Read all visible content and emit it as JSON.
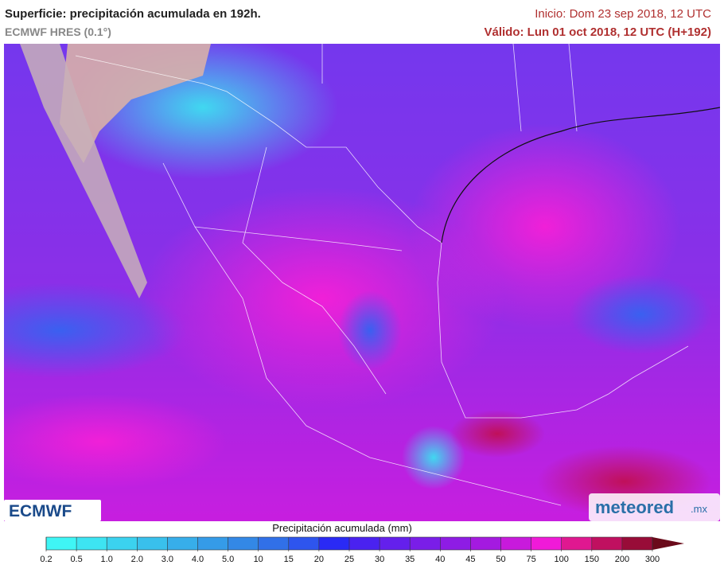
{
  "header": {
    "title": "Superficie: precipitación acumulada en 192h.",
    "model": "ECMWF HRES (0.1°)",
    "init": "Inicio: Dom 23 sep 2018, 12 UTC",
    "valid": "Válido: Lun 01 oct 2018, 12 UTC (H+192)"
  },
  "logos": {
    "left": "ECMWF",
    "right": "meteored",
    "right_suffix": ".mx"
  },
  "legend": {
    "title": "Precipitación acumulada (mm)",
    "ticks": [
      "0.2",
      "0.5",
      "1.0",
      "2.0",
      "3.0",
      "4.0",
      "5.0",
      "10",
      "15",
      "20",
      "25",
      "30",
      "35",
      "40",
      "45",
      "50",
      "75",
      "100",
      "150",
      "200",
      "300"
    ],
    "colors": [
      "#3ff5f5",
      "#3de4f2",
      "#3bd2ef",
      "#39c0ec",
      "#37aeea",
      "#359be8",
      "#3388e6",
      "#3170e8",
      "#2e55ee",
      "#2a2af5",
      "#4a22f0",
      "#6420ec",
      "#7a1ee8",
      "#8e1ce4",
      "#a41ae0",
      "#c81adc",
      "#f01ad8",
      "#e01890",
      "#c01060",
      "#980c38",
      "#6a0a1a"
    ]
  }
}
